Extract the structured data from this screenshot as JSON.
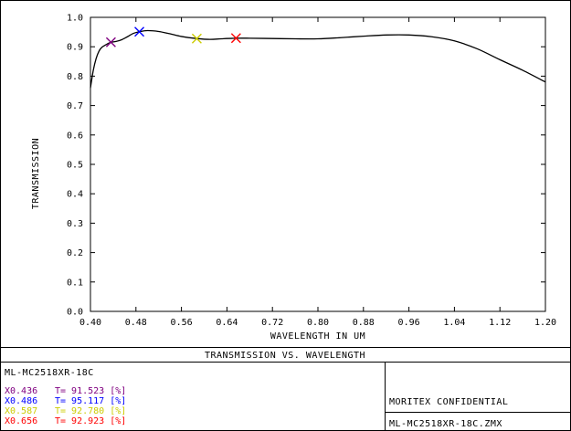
{
  "chart_data": {
    "type": "line",
    "xlabel": "WAVELENGTH IN UM",
    "ylabel": "TRANSMISSION",
    "xlim": [
      0.4,
      1.2
    ],
    "ylim": [
      0.0,
      1.0
    ],
    "xticks": [
      "0.40",
      "0.48",
      "0.56",
      "0.64",
      "0.72",
      "0.80",
      "0.88",
      "0.96",
      "1.04",
      "1.12",
      "1.20"
    ],
    "yticks": [
      "0.0",
      "0.1",
      "0.2",
      "0.3",
      "0.4",
      "0.5",
      "0.6",
      "0.7",
      "0.8",
      "0.9",
      "1.0"
    ],
    "grid": false,
    "series": [
      {
        "x": [
          0.4,
          0.405,
          0.41,
          0.415,
          0.42,
          0.43,
          0.436,
          0.445,
          0.455,
          0.465,
          0.475,
          0.486,
          0.5,
          0.52,
          0.54,
          0.56,
          0.587,
          0.61,
          0.63,
          0.656,
          0.68,
          0.72,
          0.76,
          0.8,
          0.84,
          0.88,
          0.92,
          0.96,
          1.0,
          1.04,
          1.08,
          1.12,
          1.16,
          1.2
        ],
        "y": [
          0.76,
          0.82,
          0.86,
          0.885,
          0.898,
          0.91,
          0.915,
          0.918,
          0.924,
          0.934,
          0.945,
          0.951,
          0.955,
          0.952,
          0.944,
          0.935,
          0.928,
          0.925,
          0.927,
          0.929,
          0.929,
          0.928,
          0.927,
          0.927,
          0.931,
          0.936,
          0.94,
          0.94,
          0.934,
          0.92,
          0.893,
          0.856,
          0.82,
          0.78
        ]
      }
    ],
    "markers": [
      {
        "x": 0.436,
        "y": 0.91523,
        "color": "#800080"
      },
      {
        "x": 0.486,
        "y": 0.95117,
        "color": "#0000ff"
      },
      {
        "x": 0.587,
        "y": 0.9278,
        "color": "#cccc00"
      },
      {
        "x": 0.656,
        "y": 0.92923,
        "color": "#ff0000"
      }
    ]
  },
  "footer": {
    "title": "TRANSMISSION VS. WAVELENGTH",
    "lens_name": "ML-MC2518XR-18C",
    "legend": [
      {
        "x_text": "X0.436",
        "t_text": "T= 91.523 [%]",
        "color": "#800080"
      },
      {
        "x_text": "X0.486",
        "t_text": "T= 95.117 [%]",
        "color": "#0000ff"
      },
      {
        "x_text": "X0.587",
        "t_text": "T= 92.780 [%]",
        "color": "#cccc00"
      },
      {
        "x_text": "X0.656",
        "t_text": "T= 92.923 [%]",
        "color": "#ff0000"
      }
    ],
    "confidential": "MORITEX CONFIDENTIAL",
    "file_name": "ML-MC2518XR-18C.ZMX"
  }
}
